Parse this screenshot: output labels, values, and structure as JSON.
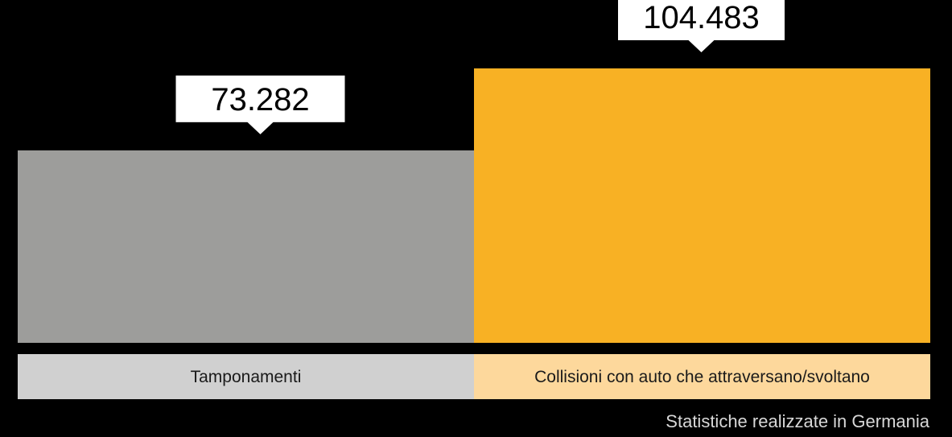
{
  "chart_data": {
    "type": "bar",
    "categories": [
      "Tamponamenti",
      "Collisioni con auto che attraversano/svoltano"
    ],
    "values": [
      73282,
      104483
    ],
    "value_labels": [
      "73.282",
      "104.483"
    ],
    "colors": [
      "#9d9d9b",
      "#f8b124"
    ],
    "category_label_colors": [
      "#d0d0d0",
      "#fdd89c"
    ],
    "title": "",
    "xlabel": "",
    "ylabel": "",
    "ylim": [
      0,
      104483
    ],
    "grid": false
  },
  "note": "Statistiche realizzate in Germania",
  "background_color": "#000000"
}
